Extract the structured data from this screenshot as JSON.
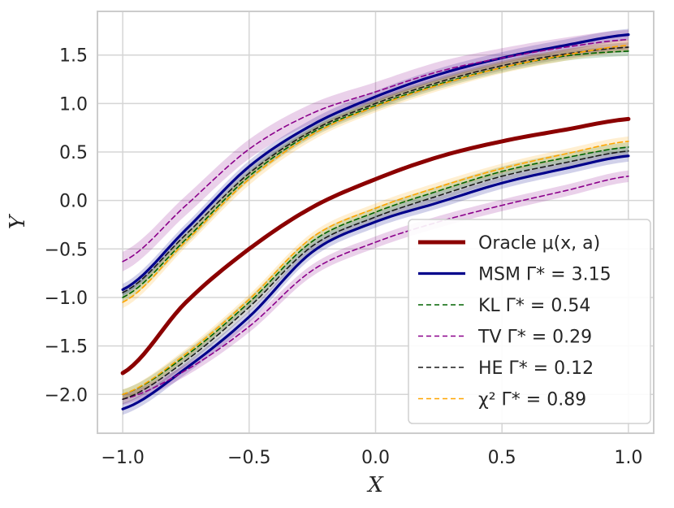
{
  "chart_data": {
    "type": "line",
    "xlabel": "X",
    "ylabel": "Y",
    "xlim": [
      -1.1,
      1.1
    ],
    "ylim": [
      -2.4,
      1.95
    ],
    "xticks": [
      -1.0,
      -0.5,
      0.0,
      0.5,
      1.0
    ],
    "xtick_labels": [
      "−1.0",
      "−0.5",
      "0.0",
      "0.5",
      "1.0"
    ],
    "yticks": [
      -2.0,
      -1.5,
      -1.0,
      -0.5,
      0.0,
      0.5,
      1.0,
      1.5
    ],
    "ytick_labels": [
      "−2.0",
      "−1.5",
      "−1.0",
      "−0.5",
      "0.0",
      "0.5",
      "1.0",
      "1.5"
    ],
    "grid": true,
    "legend_position": "lower-right",
    "x": [
      -1.0,
      -0.75,
      -0.5,
      -0.25,
      0.0,
      0.25,
      0.5,
      0.75,
      1.0
    ],
    "series": [
      {
        "name": "Oracle μ(x, a)",
        "legend": "Oracle μ(x, a)",
        "color": "#8b0000",
        "dash": "solid",
        "width": "thick",
        "values": [
          -1.78,
          -1.05,
          -0.5,
          -0.07,
          0.22,
          0.45,
          0.61,
          0.73,
          0.84
        ]
      },
      {
        "name": "MSM upper",
        "legend": "MSM Γ* = 3.15",
        "color": "#00008b",
        "dash": "solid",
        "width": "normal",
        "band": 0.06,
        "values": [
          -0.92,
          -0.3,
          0.35,
          0.78,
          1.07,
          1.3,
          1.47,
          1.6,
          1.71
        ]
      },
      {
        "name": "MSM lower",
        "color": "#00008b",
        "dash": "solid",
        "width": "normal",
        "band": 0.06,
        "values": [
          -2.15,
          -1.73,
          -1.2,
          -0.53,
          -0.22,
          -0.02,
          0.18,
          0.33,
          0.46
        ]
      },
      {
        "name": "KL upper",
        "legend": "KL Γ* = 0.54",
        "color": "#006400",
        "dash": "dashed",
        "width": "thin",
        "band": 0.05,
        "values": [
          -1.0,
          -0.4,
          0.25,
          0.7,
          0.98,
          1.2,
          1.37,
          1.49,
          1.54
        ]
      },
      {
        "name": "KL lower",
        "color": "#006400",
        "dash": "dashed",
        "width": "thin",
        "band": 0.05,
        "values": [
          -2.0,
          -1.6,
          -1.05,
          -0.42,
          -0.12,
          0.1,
          0.3,
          0.44,
          0.55
        ]
      },
      {
        "name": "TV upper",
        "legend": "TV Γ* = 0.29",
        "color": "#8b008b",
        "dash": "dashed",
        "width": "thin",
        "band": 0.1,
        "values": [
          -0.63,
          -0.05,
          0.53,
          0.9,
          1.12,
          1.33,
          1.47,
          1.58,
          1.66
        ]
      },
      {
        "name": "TV lower",
        "color": "#8b008b",
        "dash": "dashed",
        "width": "thin",
        "band": 0.06,
        "values": [
          -2.05,
          -1.75,
          -1.3,
          -0.72,
          -0.43,
          -0.22,
          -0.05,
          0.1,
          0.25
        ]
      },
      {
        "name": "HE upper",
        "legend": "HE Γ* = 0.12",
        "color": "#1a1a1a",
        "dash": "dashed",
        "width": "thin",
        "band": 0.05,
        "values": [
          -0.95,
          -0.35,
          0.28,
          0.72,
          1.0,
          1.22,
          1.39,
          1.51,
          1.58
        ]
      },
      {
        "name": "HE lower",
        "color": "#1a1a1a",
        "dash": "dashed",
        "width": "thin",
        "band": 0.05,
        "values": [
          -2.05,
          -1.65,
          -1.1,
          -0.47,
          -0.17,
          0.05,
          0.25,
          0.39,
          0.51
        ]
      },
      {
        "name": "χ² upper",
        "legend": "χ² Γ* = 0.89",
        "color": "#ffa500",
        "dash": "dashed",
        "width": "thin",
        "band": 0.06,
        "values": [
          -1.05,
          -0.42,
          0.22,
          0.68,
          0.97,
          1.19,
          1.37,
          1.5,
          1.6
        ]
      },
      {
        "name": "χ² lower",
        "color": "#ffa500",
        "dash": "dashed",
        "width": "thin",
        "band": 0.05,
        "values": [
          -2.0,
          -1.58,
          -1.02,
          -0.38,
          -0.08,
          0.14,
          0.33,
          0.48,
          0.61
        ]
      }
    ]
  }
}
